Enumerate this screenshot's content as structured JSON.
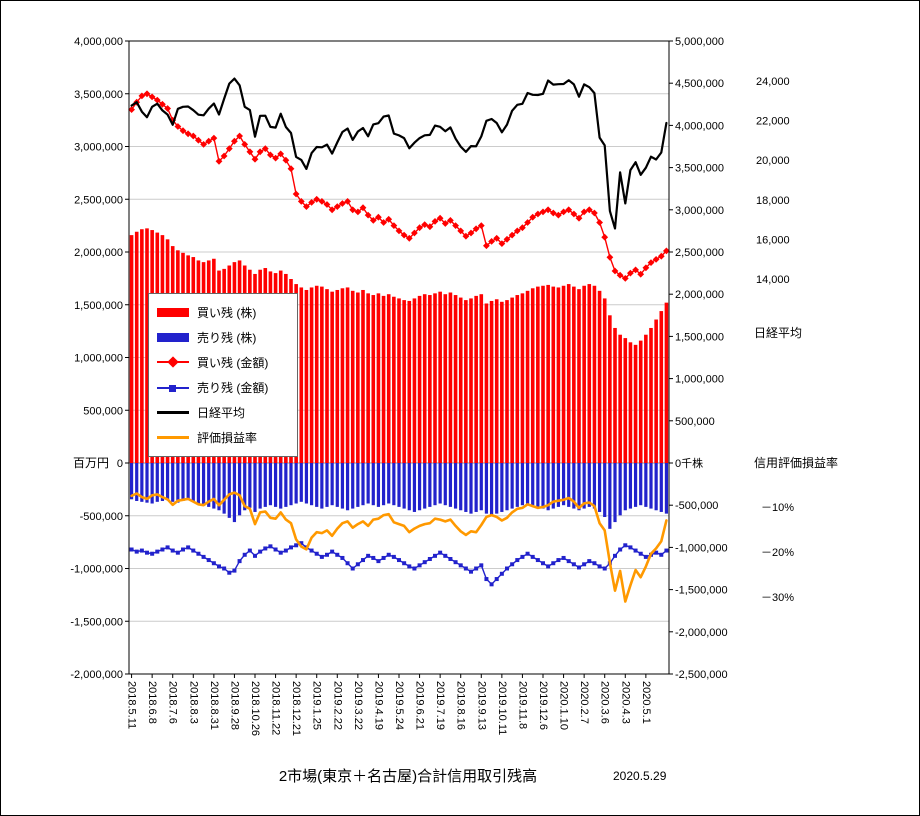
{
  "title": "2市場(東京＋名古屋)合計信用取引残高",
  "date_note": "2020.5.29",
  "chart_data": {
    "type": "combo",
    "x_label_every": 4,
    "x_labels": [
      "2018.5.11",
      "2018.6.8",
      "2018.7.6",
      "2018.8.3",
      "2018.8.31",
      "2018.9.28",
      "2018.10.26",
      "2018.11.22",
      "2018.12.21",
      "2019.1.25",
      "2019.2.22",
      "2019.3.22",
      "2019.4.19",
      "2019.5.24",
      "2019.6.21",
      "2019.7.19",
      "2019.8.16",
      "2019.9.13",
      "2019.10.11",
      "2019.11.8",
      "2019.12.6",
      "2020.1.10",
      "2020.2.7",
      "2020.3.6",
      "2020.4.3",
      "2020.5.1"
    ],
    "left_axis": {
      "min": -2000000,
      "max": 4000000,
      "step": 500000,
      "unit": "百万円"
    },
    "right_axis": {
      "min": -2500000,
      "max": 5000000,
      "step": 500000,
      "zero_label": "0千株"
    },
    "nikkei_axis": {
      "label": "日経平均",
      "ticks": [
        24000,
        22000,
        20000,
        18000,
        16000,
        14000
      ]
    },
    "pct_axis": {
      "label": "信用評価損益率",
      "ticks": [
        "－10%",
        "－20%",
        "－30%"
      ],
      "tick_values": [
        -10,
        -20,
        -30
      ]
    },
    "series": {
      "buy_shares": {
        "name": "買い残 (株)",
        "type": "bar",
        "axis": "right",
        "color": "#FF0000",
        "values": [
          2700000,
          2740000,
          2770000,
          2780000,
          2760000,
          2730000,
          2700000,
          2650000,
          2570000,
          2520000,
          2490000,
          2460000,
          2440000,
          2400000,
          2380000,
          2400000,
          2420000,
          2280000,
          2300000,
          2340000,
          2380000,
          2400000,
          2340000,
          2290000,
          2240000,
          2290000,
          2310000,
          2270000,
          2250000,
          2280000,
          2240000,
          2180000,
          2120000,
          2080000,
          2050000,
          2080000,
          2100000,
          2090000,
          2060000,
          2030000,
          2050000,
          2070000,
          2080000,
          2040000,
          2020000,
          2050000,
          2010000,
          1990000,
          2010000,
          1980000,
          2000000,
          1970000,
          1950000,
          1930000,
          1920000,
          1950000,
          1980000,
          2000000,
          1990000,
          2010000,
          2030000,
          2000000,
          2020000,
          1990000,
          1960000,
          1930000,
          1950000,
          1980000,
          2000000,
          1890000,
          1920000,
          1940000,
          1910000,
          1930000,
          1960000,
          1990000,
          2010000,
          2040000,
          2070000,
          2090000,
          2100000,
          2110000,
          2090000,
          2080000,
          2100000,
          2120000,
          2090000,
          2060000,
          2100000,
          2120000,
          2100000,
          2040000,
          1950000,
          1750000,
          1600000,
          1520000,
          1480000,
          1430000,
          1400000,
          1450000,
          1520000,
          1600000,
          1700000,
          1800000,
          1900000
        ]
      },
      "sell_shares": {
        "name": "売り残 (株)",
        "type": "bar",
        "axis": "right",
        "color": "#2222CC",
        "values": [
          -430000,
          -450000,
          -460000,
          -470000,
          -480000,
          -460000,
          -450000,
          -440000,
          -460000,
          -470000,
          -450000,
          -440000,
          -460000,
          -480000,
          -500000,
          -520000,
          -540000,
          -560000,
          -600000,
          -650000,
          -700000,
          -620000,
          -560000,
          -530000,
          -580000,
          -540000,
          -520000,
          -500000,
          -520000,
          -540000,
          -520000,
          -500000,
          -480000,
          -460000,
          -480000,
          -500000,
          -520000,
          -540000,
          -520000,
          -500000,
          -520000,
          -540000,
          -560000,
          -540000,
          -520000,
          -500000,
          -480000,
          -500000,
          -520000,
          -500000,
          -480000,
          -500000,
          -520000,
          -540000,
          -560000,
          -580000,
          -560000,
          -540000,
          -520000,
          -500000,
          -480000,
          -500000,
          -520000,
          -540000,
          -560000,
          -580000,
          -600000,
          -580000,
          -560000,
          -600000,
          -620000,
          -600000,
          -580000,
          -560000,
          -540000,
          -520000,
          -500000,
          -480000,
          -500000,
          -520000,
          -540000,
          -560000,
          -540000,
          -520000,
          -500000,
          -520000,
          -540000,
          -560000,
          -540000,
          -520000,
          -540000,
          -580000,
          -640000,
          -780000,
          -700000,
          -620000,
          -560000,
          -540000,
          -520000,
          -500000,
          -520000,
          -540000,
          -560000,
          -580000,
          -600000
        ]
      },
      "buy_value": {
        "name": "買い残 (金額)",
        "type": "line",
        "marker": "diamond",
        "axis": "left",
        "color": "#FF0000",
        "values": [
          3350000,
          3420000,
          3480000,
          3500000,
          3470000,
          3440000,
          3400000,
          3360000,
          3250000,
          3190000,
          3150000,
          3120000,
          3100000,
          3060000,
          3020000,
          3050000,
          3080000,
          2860000,
          2910000,
          2980000,
          3050000,
          3100000,
          3020000,
          2950000,
          2880000,
          2950000,
          2980000,
          2920000,
          2890000,
          2930000,
          2870000,
          2790000,
          2550000,
          2480000,
          2430000,
          2470000,
          2500000,
          2480000,
          2450000,
          2400000,
          2430000,
          2460000,
          2480000,
          2400000,
          2380000,
          2420000,
          2350000,
          2300000,
          2330000,
          2280000,
          2310000,
          2250000,
          2200000,
          2160000,
          2130000,
          2180000,
          2230000,
          2260000,
          2240000,
          2290000,
          2320000,
          2270000,
          2300000,
          2250000,
          2200000,
          2150000,
          2180000,
          2220000,
          2250000,
          2060000,
          2100000,
          2130000,
          2080000,
          2120000,
          2160000,
          2200000,
          2230000,
          2280000,
          2330000,
          2360000,
          2380000,
          2400000,
          2370000,
          2350000,
          2380000,
          2400000,
          2360000,
          2320000,
          2380000,
          2400000,
          2370000,
          2280000,
          2140000,
          1950000,
          1820000,
          1780000,
          1750000,
          1800000,
          1830000,
          1790000,
          1850000,
          1900000,
          1930000,
          1960000,
          2010000
        ]
      },
      "sell_value": {
        "name": "売り残 (金額)",
        "type": "line",
        "marker": "square",
        "axis": "left",
        "color": "#2222CC",
        "values": [
          -820000,
          -840000,
          -830000,
          -850000,
          -860000,
          -840000,
          -820000,
          -800000,
          -830000,
          -850000,
          -820000,
          -800000,
          -830000,
          -860000,
          -890000,
          -920000,
          -950000,
          -980000,
          -1000000,
          -1040000,
          -1020000,
          -930000,
          -870000,
          -830000,
          -880000,
          -840000,
          -810000,
          -790000,
          -820000,
          -850000,
          -830000,
          -800000,
          -780000,
          -760000,
          -800000,
          -830000,
          -860000,
          -890000,
          -870000,
          -840000,
          -870000,
          -900000,
          -950000,
          -1000000,
          -960000,
          -920000,
          -880000,
          -900000,
          -930000,
          -900000,
          -870000,
          -890000,
          -920000,
          -950000,
          -980000,
          -1000000,
          -970000,
          -940000,
          -910000,
          -880000,
          -850000,
          -880000,
          -910000,
          -940000,
          -970000,
          -1000000,
          -1030000,
          -1000000,
          -970000,
          -1100000,
          -1150000,
          -1100000,
          -1050000,
          -1000000,
          -960000,
          -920000,
          -890000,
          -860000,
          -890000,
          -920000,
          -950000,
          -980000,
          -950000,
          -920000,
          -900000,
          -930000,
          -960000,
          -990000,
          -960000,
          -930000,
          -950000,
          -980000,
          -1000000,
          -950000,
          -880000,
          -820000,
          -780000,
          -800000,
          -830000,
          -860000,
          -890000,
          -870000,
          -850000,
          -870000,
          -830000
        ]
      },
      "nikkei": {
        "name": "日経平均",
        "type": "line",
        "axis": "nikkei",
        "color": "#000000",
        "values": [
          22758,
          22930,
          22451,
          22171,
          22695,
          22852,
          22517,
          22305,
          21788,
          22597,
          22698,
          22713,
          22525,
          22298,
          22270,
          22602,
          22865,
          22307,
          23095,
          23870,
          24120,
          23784,
          22695,
          22532,
          21185,
          22243,
          22250,
          21680,
          21647,
          22351,
          21679,
          21375,
          20166,
          20015,
          19562,
          20360,
          20666,
          20649,
          20788,
          20333,
          20901,
          21426,
          21603,
          21026,
          21451,
          21627,
          21206,
          21808,
          21871,
          22201,
          22259,
          21345,
          21250,
          21117,
          20601,
          20884,
          21117,
          21259,
          21276,
          21746,
          21686,
          21467,
          21658,
          21087,
          20685,
          20419,
          20711,
          20704,
          21200,
          21988,
          22079,
          21879,
          21410,
          21799,
          22493,
          22800,
          22851,
          23392,
          23303,
          23294,
          23354,
          24023,
          23817,
          23838,
          23851,
          24041,
          23827,
          23205,
          23828,
          23688,
          23387,
          21143,
          20750,
          17431,
          16553,
          19389,
          17820,
          19499,
          19897,
          19262,
          19619,
          20179,
          20037,
          20388,
          21877
        ]
      },
      "pl_ratio": {
        "name": "評価損益率",
        "type": "line",
        "axis": "pct",
        "color": "#FF9900",
        "values": [
          -7.5,
          -7.0,
          -7.8,
          -8.2,
          -7.4,
          -7.2,
          -7.8,
          -8.3,
          -9.5,
          -8.6,
          -8.4,
          -8.2,
          -8.8,
          -9.4,
          -9.6,
          -8.8,
          -8.2,
          -9.6,
          -8.4,
          -7.2,
          -6.8,
          -7.4,
          -9.8,
          -10.4,
          -13.8,
          -11.2,
          -11.0,
          -12.4,
          -12.6,
          -11.2,
          -12.8,
          -13.6,
          -17.2,
          -18.8,
          -19.4,
          -16.8,
          -15.6,
          -15.8,
          -15.2,
          -16.4,
          -14.8,
          -13.6,
          -13.2,
          -14.6,
          -13.8,
          -13.2,
          -14.2,
          -12.8,
          -12.6,
          -11.8,
          -11.6,
          -13.4,
          -13.8,
          -14.2,
          -15.6,
          -14.8,
          -14.2,
          -13.8,
          -13.6,
          -12.6,
          -12.8,
          -13.2,
          -12.8,
          -14.2,
          -15.4,
          -16.2,
          -15.4,
          -15.6,
          -14.0,
          -12.2,
          -11.8,
          -12.2,
          -13.0,
          -12.4,
          -11.2,
          -10.4,
          -10.2,
          -9.4,
          -9.8,
          -10.2,
          -10.0,
          -9.6,
          -8.8,
          -8.6,
          -8.4,
          -8.0,
          -8.8,
          -10.2,
          -9.2,
          -9.0,
          -9.8,
          -13.6,
          -15.2,
          -22.4,
          -28.6,
          -24.2,
          -31.0,
          -27.4,
          -24.0,
          -25.6,
          -23.2,
          -20.4,
          -19.2,
          -17.6,
          -13.0
        ]
      }
    }
  }
}
